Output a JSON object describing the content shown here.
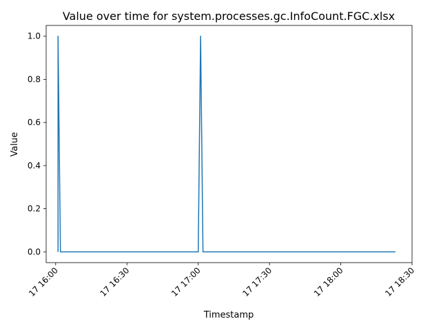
{
  "chart_data": {
    "type": "line",
    "title": "Value over time for system.processes.gc.InfoCount.FGC.xlsx",
    "xlabel": "Timestamp",
    "ylabel": "Value",
    "xlim": [
      "2024-01-17 15:56",
      "2024-01-17 18:30"
    ],
    "ylim": [
      -0.05,
      1.05
    ],
    "x_ticks": [
      {
        "value": "2024-01-17 16:00",
        "label": "17 16:00"
      },
      {
        "value": "2024-01-17 16:30",
        "label": "17 16:30"
      },
      {
        "value": "2024-01-17 17:00",
        "label": "17 17:00"
      },
      {
        "value": "2024-01-17 17:30",
        "label": "17 17:30"
      },
      {
        "value": "2024-01-17 18:00",
        "label": "17 18:00"
      },
      {
        "value": "2024-01-17 18:30",
        "label": "17 18:30"
      }
    ],
    "y_ticks": [
      {
        "value": 0.0,
        "label": "0.0"
      },
      {
        "value": 0.2,
        "label": "0.2"
      },
      {
        "value": 0.4,
        "label": "0.4"
      },
      {
        "value": 0.6,
        "label": "0.6"
      },
      {
        "value": 0.8,
        "label": "0.8"
      },
      {
        "value": 1.0,
        "label": "1.0"
      }
    ],
    "grid": false,
    "line_color": "#1f77b4",
    "series": [
      {
        "x": [
          "2024-01-17 16:01",
          "2024-01-17 16:01",
          "2024-01-17 16:02",
          "2024-01-17 16:02",
          "2024-01-17 17:00",
          "2024-01-17 17:01",
          "2024-01-17 17:02",
          "2024-01-17 18:23"
        ],
        "values": [
          0,
          1,
          0,
          0,
          0,
          1,
          0,
          0
        ]
      }
    ]
  }
}
